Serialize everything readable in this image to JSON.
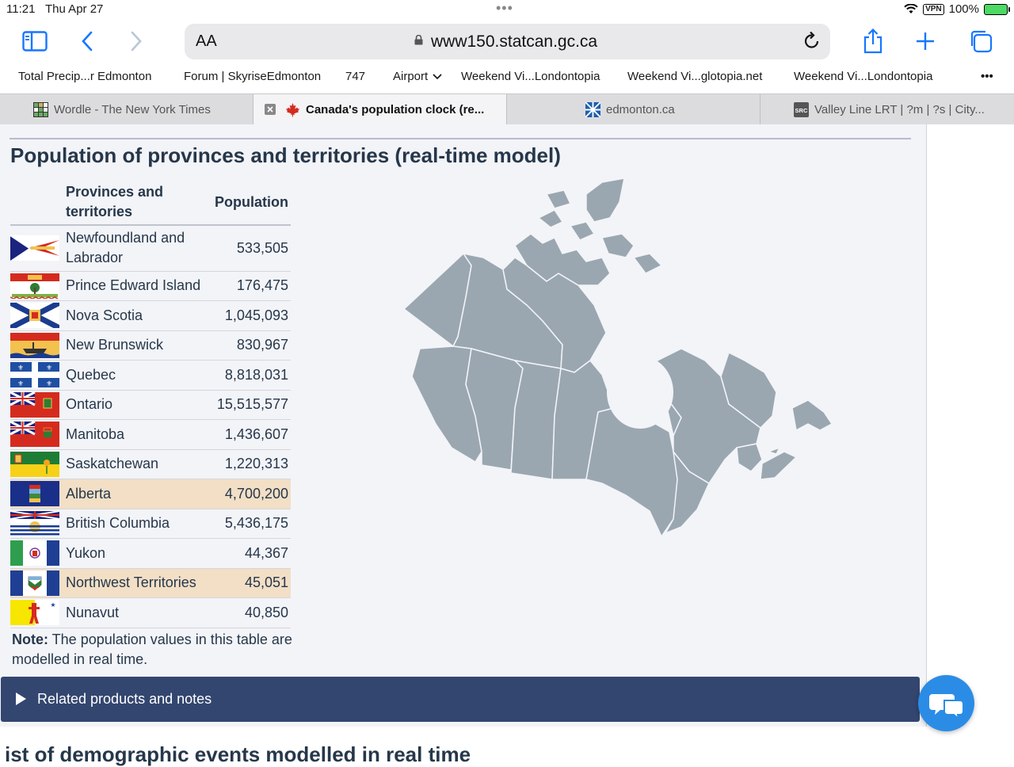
{
  "status": {
    "time": "11:21",
    "date": "Thu Apr 27",
    "vpn": "VPN",
    "battery": "100%"
  },
  "browser": {
    "aa_label": "AA",
    "url": "www150.statcan.gc.ca",
    "bookmarks": [
      "Total Precip...r Edmonton",
      "Forum | SkyriseEdmonton",
      "747",
      "Airport",
      "Weekend Vi...Londontopia",
      "Weekend Vi...glotopia.net",
      "Weekend Vi...Londontopia",
      "•••"
    ],
    "tabs": [
      "Wordle - The New York Times",
      "Canada's population clock (re...",
      "edmonton.ca",
      "Valley Line LRT | ?m | ?s | City..."
    ]
  },
  "page": {
    "heading": "Population of provinces and territories (real-time model)",
    "table": {
      "col_region": "Provinces and territories",
      "col_population": "Population",
      "rows": [
        {
          "name": "Newfoundland and Labrador",
          "population": "533,505"
        },
        {
          "name": "Prince Edward Island",
          "population": "176,475"
        },
        {
          "name": "Nova Scotia",
          "population": "1,045,093"
        },
        {
          "name": "New Brunswick",
          "population": "830,967"
        },
        {
          "name": "Quebec",
          "population": "8,818,031"
        },
        {
          "name": "Ontario",
          "population": "15,515,577"
        },
        {
          "name": "Manitoba",
          "population": "1,436,607"
        },
        {
          "name": "Saskatchewan",
          "population": "1,220,313"
        },
        {
          "name": "Alberta",
          "population": "4,700,200"
        },
        {
          "name": "British Columbia",
          "population": "5,436,175"
        },
        {
          "name": "Yukon",
          "population": "44,367"
        },
        {
          "name": "Northwest Territories",
          "population": "45,051"
        },
        {
          "name": "Nunavut",
          "population": "40,850"
        }
      ]
    },
    "note_label": "Note:",
    "note_text": " The population values in this table are modelled in real time.",
    "related_label": "Related products and notes",
    "bottom_heading": "ist of demographic events modelled in real time"
  },
  "colors": {
    "heading": "#26374a",
    "highlight": "#f2dfc6",
    "related_bar": "#33466f",
    "map_fill": "#9aa7b1",
    "chat": "#2b8ce6",
    "accent": "#1677ff"
  }
}
